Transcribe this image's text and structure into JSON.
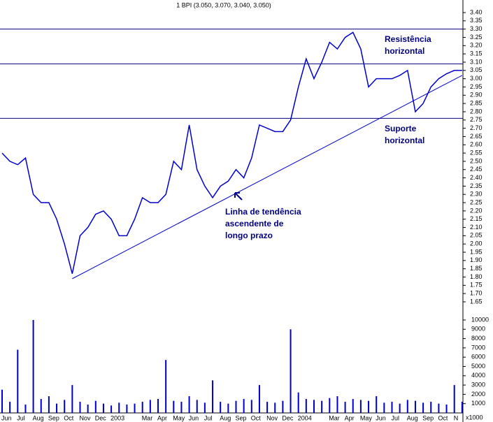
{
  "chart_data": [
    {
      "type": "line",
      "title": "1 BPI (3.050, 3.070, 3.040, 3.050)",
      "color": "#0000cc",
      "series": [
        {
          "values": [
            2.55,
            2.5,
            2.48,
            2.52,
            2.3,
            2.25,
            2.25,
            2.15,
            2.0,
            1.82,
            2.05,
            2.1,
            2.18,
            2.2,
            2.15,
            2.05,
            2.05,
            2.15,
            2.28,
            2.25,
            2.25,
            2.3,
            2.5,
            2.45,
            2.72,
            2.45,
            2.35,
            2.28,
            2.35,
            2.38,
            2.45,
            2.4,
            2.52,
            2.72,
            2.7,
            2.68,
            2.68,
            2.75,
            2.95,
            3.12,
            3.0,
            3.1,
            3.22,
            3.18,
            3.25,
            3.28,
            3.18,
            2.95,
            3.0,
            3.0,
            3.0,
            3.02,
            3.05,
            2.8,
            2.85,
            2.95,
            3.0,
            3.03,
            3.05,
            3.05
          ]
        }
      ],
      "ylim": [
        1.65,
        3.4
      ],
      "yticks": [
        1.65,
        {
          "value": 1.7,
          "label": "1.70"
        },
        1.75,
        {
          "value": 1.8,
          "label": "1.80"
        },
        1.85,
        {
          "value": 1.9,
          "label": "1.90"
        },
        1.95,
        {
          "value": 2,
          "label": "2.00"
        },
        2.05,
        {
          "value": 2.1,
          "label": "2.10"
        },
        2.15,
        {
          "value": 2.2,
          "label": "2.20"
        },
        2.25,
        {
          "value": 2.3,
          "label": "2.30"
        },
        2.35,
        {
          "value": 2.4,
          "label": "2.40"
        },
        2.45,
        {
          "value": 2.5,
          "label": "2.50"
        },
        2.55,
        {
          "value": 2.6,
          "label": "2.60"
        },
        2.65,
        {
          "value": 2.7,
          "label": "2.70"
        },
        2.75,
        {
          "value": 2.8,
          "label": "2.80"
        },
        2.85,
        {
          "value": 2.9,
          "label": "2.90"
        },
        2.95,
        {
          "value": 3,
          "label": "3.00"
        },
        3.05,
        {
          "value": 3.1,
          "label": "3.10"
        },
        3.15,
        {
          "value": 3.2,
          "label": "3.20"
        },
        3.25,
        {
          "value": 3.3,
          "label": "3.30"
        },
        3.35,
        {
          "value": 3.4,
          "label": "3.40"
        }
      ],
      "reference_lines": [
        3.3,
        3.09,
        2.76
      ],
      "trendline": {
        "x": [
          9,
          59
        ],
        "y": [
          1.79,
          3.02
        ]
      },
      "annotations": {
        "resistance": [
          "Resistência",
          "horizontal"
        ],
        "support": [
          "Suporte",
          "horizontal"
        ],
        "trend": [
          "Linha de tendência",
          "ascendente de",
          "longo prazo"
        ]
      }
    },
    {
      "type": "bar",
      "color": "#0000cc",
      "unit_label": "x1000",
      "categories": [
        "Jun",
        null,
        "Jul",
        null,
        "Aug",
        null,
        "Sep",
        null,
        "Oct",
        null,
        "Nov",
        null,
        "Dec",
        null,
        "2003",
        null,
        null,
        null,
        "Mar",
        null,
        "Apr",
        null,
        "May",
        null,
        "Jun",
        null,
        "Jul",
        null,
        "Aug",
        null,
        "Sep",
        null,
        "Oct",
        null,
        "Nov",
        null,
        "Dec",
        null,
        "2004",
        null,
        null,
        null,
        "Mar",
        null,
        "Apr",
        null,
        "May",
        null,
        "Jun",
        null,
        "Jul",
        null,
        "Aug",
        null,
        "Sep",
        null,
        "Oct",
        null,
        "N",
        null
      ],
      "values": [
        2500,
        1200,
        6800,
        900,
        10000,
        1500,
        1800,
        1000,
        1400,
        3000,
        1200,
        900,
        1300,
        1000,
        800,
        1100,
        900,
        1000,
        1200,
        1400,
        1500,
        5700,
        1300,
        1200,
        1800,
        1400,
        1100,
        3500,
        1200,
        1000,
        1300,
        1500,
        1400,
        3000,
        1200,
        1100,
        1300,
        9000,
        2200,
        1500,
        1400,
        1300,
        1600,
        1800,
        1200,
        1500,
        1400,
        1300,
        1800,
        1100,
        1200,
        1000,
        1400,
        1300,
        1100,
        1200,
        1000,
        900,
        3000,
        1200
      ],
      "ylim": [
        0,
        10000
      ],
      "yticks": [
        1000,
        2000,
        3000,
        4000,
        5000,
        6000,
        7000,
        8000,
        9000,
        10000
      ]
    }
  ]
}
